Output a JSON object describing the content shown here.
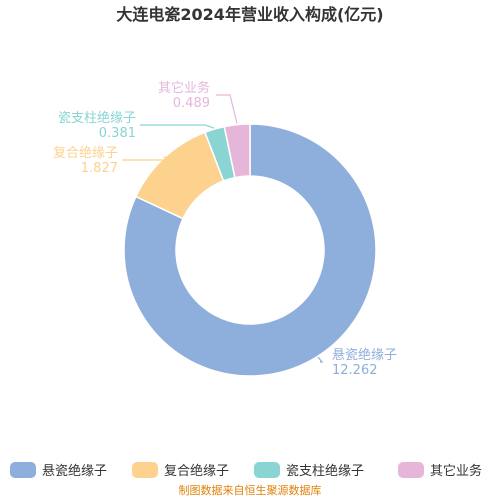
{
  "chart_data": {
    "type": "pie",
    "style": "donut",
    "title": "大连电瓷2024年营业收入构成(亿元)",
    "series": [
      {
        "name": "悬瓷绝缘子",
        "value": 12.262,
        "label": "12.262",
        "color": "#8eaedb"
      },
      {
        "name": "复合绝缘子",
        "value": 1.827,
        "label": "1.827",
        "color": "#fcd28e"
      },
      {
        "name": "瓷支柱绝缘子",
        "value": 0.381,
        "label": "0.381",
        "color": "#8ad4d4"
      },
      {
        "name": "其它业务",
        "value": 0.489,
        "label": "0.489",
        "color": "#e6b6da"
      }
    ],
    "legend_position": "bottom",
    "source": "制图数据来自恒生聚源数据库"
  }
}
